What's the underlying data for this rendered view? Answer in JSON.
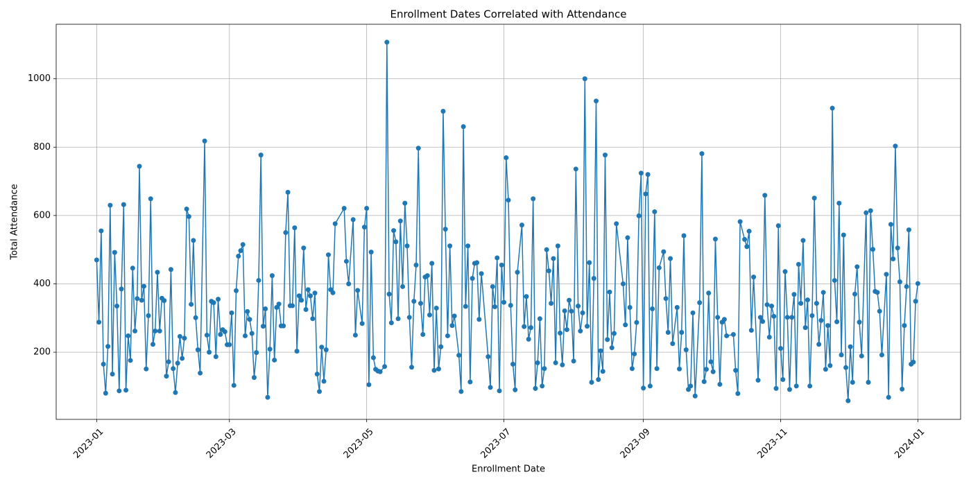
{
  "chart_data": {
    "type": "line",
    "title": "Enrollment Dates Correlated with Attendance",
    "x_label": "Enrollment Date",
    "y_label": "Total Attendance",
    "color": "#1f77b4",
    "grid": true,
    "marker": "circle",
    "xlim": [
      "2022-12-14",
      "2024-01-20"
    ],
    "ylim": [
      3.5,
      1159.5
    ],
    "xticks": [
      "2023-01",
      "2023-03",
      "2023-05",
      "2023-07",
      "2023-09",
      "2023-11",
      "2024-01"
    ],
    "yticks": [
      200,
      400,
      600,
      800,
      1000
    ],
    "x": [
      "2023-01-01",
      "2023-01-02",
      "2023-01-03",
      "2023-01-04",
      "2023-01-05",
      "2023-01-06",
      "2023-01-07",
      "2023-01-08",
      "2023-01-09",
      "2023-01-10",
      "2023-01-11",
      "2023-01-12",
      "2023-01-13",
      "2023-01-14",
      "2023-01-15",
      "2023-01-16",
      "2023-01-17",
      "2023-01-18",
      "2023-01-19",
      "2023-01-20",
      "2023-01-21",
      "2023-01-22",
      "2023-01-23",
      "2023-01-24",
      "2023-01-25",
      "2023-01-26",
      "2023-01-27",
      "2023-01-28",
      "2023-01-29",
      "2023-01-30",
      "2023-01-31",
      "2023-02-01",
      "2023-02-02",
      "2023-02-03",
      "2023-02-04",
      "2023-02-05",
      "2023-02-06",
      "2023-02-07",
      "2023-02-08",
      "2023-02-09",
      "2023-02-10",
      "2023-02-11",
      "2023-02-12",
      "2023-02-13",
      "2023-02-14",
      "2023-02-15",
      "2023-02-16",
      "2023-02-18",
      "2023-02-19",
      "2023-02-20",
      "2023-02-21",
      "2023-02-22",
      "2023-02-23",
      "2023-02-24",
      "2023-02-25",
      "2023-02-26",
      "2023-02-27",
      "2023-02-28",
      "2023-03-01",
      "2023-03-02",
      "2023-03-03",
      "2023-03-04",
      "2023-03-05",
      "2023-03-06",
      "2023-03-07",
      "2023-03-08",
      "2023-03-09",
      "2023-03-10",
      "2023-03-11",
      "2023-03-12",
      "2023-03-13",
      "2023-03-14",
      "2023-03-15",
      "2023-03-16",
      "2023-03-17",
      "2023-03-18",
      "2023-03-19",
      "2023-03-20",
      "2023-03-21",
      "2023-03-22",
      "2023-03-23",
      "2023-03-24",
      "2023-03-25",
      "2023-03-26",
      "2023-03-27",
      "2023-03-28",
      "2023-03-29",
      "2023-03-30",
      "2023-03-31",
      "2023-04-01",
      "2023-04-02",
      "2023-04-03",
      "2023-04-04",
      "2023-04-05",
      "2023-04-06",
      "2023-04-07",
      "2023-04-08",
      "2023-04-09",
      "2023-04-10",
      "2023-04-11",
      "2023-04-12",
      "2023-04-13",
      "2023-04-14",
      "2023-04-15",
      "2023-04-16",
      "2023-04-17",
      "2023-04-21",
      "2023-04-22",
      "2023-04-23",
      "2023-04-25",
      "2023-04-26",
      "2023-04-27",
      "2023-04-29",
      "2023-04-30",
      "2023-05-01",
      "2023-05-02",
      "2023-05-03",
      "2023-05-04",
      "2023-05-05",
      "2023-05-06",
      "2023-05-07",
      "2023-05-09",
      "2023-05-10",
      "2023-05-11",
      "2023-05-12",
      "2023-05-13",
      "2023-05-14",
      "2023-05-15",
      "2023-05-16",
      "2023-05-17",
      "2023-05-18",
      "2023-05-19",
      "2023-05-20",
      "2023-05-21",
      "2023-05-22",
      "2023-05-23",
      "2023-05-24",
      "2023-05-25",
      "2023-05-26",
      "2023-05-27",
      "2023-05-28",
      "2023-05-29",
      "2023-05-30",
      "2023-05-31",
      "2023-06-01",
      "2023-06-02",
      "2023-06-03",
      "2023-06-04",
      "2023-06-05",
      "2023-06-06",
      "2023-06-07",
      "2023-06-08",
      "2023-06-09",
      "2023-06-11",
      "2023-06-12",
      "2023-06-13",
      "2023-06-14",
      "2023-06-15",
      "2023-06-16",
      "2023-06-17",
      "2023-06-18",
      "2023-06-19",
      "2023-06-20",
      "2023-06-21",
      "2023-06-24",
      "2023-06-25",
      "2023-06-26",
      "2023-06-27",
      "2023-06-28",
      "2023-06-29",
      "2023-06-30",
      "2023-07-01",
      "2023-07-02",
      "2023-07-03",
      "2023-07-04",
      "2023-07-05",
      "2023-07-06",
      "2023-07-07",
      "2023-07-09",
      "2023-07-10",
      "2023-07-11",
      "2023-07-12",
      "2023-07-13",
      "2023-07-14",
      "2023-07-15",
      "2023-07-16",
      "2023-07-17",
      "2023-07-18",
      "2023-07-19",
      "2023-07-20",
      "2023-07-21",
      "2023-07-22",
      "2023-07-23",
      "2023-07-24",
      "2023-07-25",
      "2023-07-26",
      "2023-07-27",
      "2023-07-28",
      "2023-07-29",
      "2023-07-30",
      "2023-07-31",
      "2023-08-01",
      "2023-08-02",
      "2023-08-03",
      "2023-08-04",
      "2023-08-05",
      "2023-08-06",
      "2023-08-07",
      "2023-08-08",
      "2023-08-09",
      "2023-08-10",
      "2023-08-11",
      "2023-08-12",
      "2023-08-13",
      "2023-08-14",
      "2023-08-15",
      "2023-08-16",
      "2023-08-17",
      "2023-08-18",
      "2023-08-19",
      "2023-08-20",
      "2023-08-23",
      "2023-08-24",
      "2023-08-25",
      "2023-08-26",
      "2023-08-27",
      "2023-08-28",
      "2023-08-29",
      "2023-08-30",
      "2023-08-31",
      "2023-09-01",
      "2023-09-02",
      "2023-09-03",
      "2023-09-04",
      "2023-09-05",
      "2023-09-06",
      "2023-09-07",
      "2023-09-08",
      "2023-09-10",
      "2023-09-11",
      "2023-09-12",
      "2023-09-13",
      "2023-09-14",
      "2023-09-16",
      "2023-09-17",
      "2023-09-18",
      "2023-09-19",
      "2023-09-20",
      "2023-09-21",
      "2023-09-22",
      "2023-09-23",
      "2023-09-24",
      "2023-09-26",
      "2023-09-27",
      "2023-09-28",
      "2023-09-29",
      "2023-09-30",
      "2023-10-01",
      "2023-10-02",
      "2023-10-03",
      "2023-10-04",
      "2023-10-05",
      "2023-10-06",
      "2023-10-07",
      "2023-10-08",
      "2023-10-11",
      "2023-10-12",
      "2023-10-13",
      "2023-10-14",
      "2023-10-16",
      "2023-10-17",
      "2023-10-18",
      "2023-10-19",
      "2023-10-20",
      "2023-10-22",
      "2023-10-23",
      "2023-10-24",
      "2023-10-25",
      "2023-10-26",
      "2023-10-27",
      "2023-10-28",
      "2023-10-29",
      "2023-10-30",
      "2023-10-31",
      "2023-11-01",
      "2023-11-02",
      "2023-11-03",
      "2023-11-04",
      "2023-11-05",
      "2023-11-06",
      "2023-11-07",
      "2023-11-08",
      "2023-11-09",
      "2023-11-10",
      "2023-11-11",
      "2023-11-12",
      "2023-11-13",
      "2023-11-14",
      "2023-11-15",
      "2023-11-16",
      "2023-11-17",
      "2023-11-18",
      "2023-11-19",
      "2023-11-20",
      "2023-11-21",
      "2023-11-22",
      "2023-11-23",
      "2023-11-24",
      "2023-11-25",
      "2023-11-26",
      "2023-11-27",
      "2023-11-28",
      "2023-11-29",
      "2023-11-30",
      "2023-12-01",
      "2023-12-02",
      "2023-12-03",
      "2023-12-04",
      "2023-12-05",
      "2023-12-06",
      "2023-12-07",
      "2023-12-09",
      "2023-12-10",
      "2023-12-11",
      "2023-12-12",
      "2023-12-13",
      "2023-12-14",
      "2023-12-15",
      "2023-12-16",
      "2023-12-18",
      "2023-12-19",
      "2023-12-20",
      "2023-12-21",
      "2023-12-22",
      "2023-12-23",
      "2023-12-24",
      "2023-12-25",
      "2023-12-26",
      "2023-12-27",
      "2023-12-28",
      "2023-12-29",
      "2023-12-30",
      "2023-12-31",
      "2024-01-01"
    ],
    "values": [
      470,
      288,
      555,
      165,
      80,
      217,
      630,
      136,
      492,
      335,
      87,
      385,
      632,
      89,
      248,
      176,
      446,
      262,
      357,
      744,
      352,
      393,
      151,
      307,
      649,
      223,
      262,
      434,
      262,
      358,
      351,
      130,
      172,
      442,
      152,
      82,
      168,
      246,
      182,
      241,
      619,
      597,
      340,
      527,
      301,
      207,
      139,
      818,
      250,
      200,
      349,
      345,
      187,
      355,
      252,
      266,
      260,
      222,
      222,
      315,
      103,
      380,
      481,
      497,
      515,
      248,
      319,
      296,
      255,
      126,
      199,
      410,
      777,
      276,
      327,
      68,
      209,
      424,
      177,
      331,
      341,
      277,
      277,
      550,
      668,
      336,
      336,
      564,
      203,
      365,
      352,
      505,
      325,
      383,
      365,
      298,
      373,
      136,
      85,
      215,
      115,
      207,
      485,
      383,
      374,
      576,
      621,
      466,
      400,
      588,
      250,
      381,
      284,
      566,
      621,
      105,
      493,
      184,
      150,
      145,
      143,
      158,
      1107,
      370,
      286,
      556,
      523,
      298,
      584,
      392,
      636,
      511,
      302,
      156,
      349,
      455,
      797,
      343,
      252,
      420,
      424,
      309,
      460,
      147,
      329,
      151,
      216,
      905,
      560,
      248,
      511,
      278,
      306,
      191,
      85,
      860,
      334,
      511,
      113,
      416,
      460,
      462,
      296,
      430,
      187,
      97,
      392,
      333,
      476,
      87,
      455,
      346,
      769,
      645,
      337,
      165,
      90,
      434,
      572,
      275,
      363,
      238,
      272,
      649,
      94,
      169,
      298,
      101,
      152,
      500,
      438,
      343,
      474,
      169,
      511,
      256,
      163,
      321,
      266,
      352,
      320,
      174,
      736,
      335,
      262,
      315,
      1000,
      276,
      462,
      112,
      416,
      935,
      120,
      204,
      144,
      777,
      237,
      376,
      213,
      255,
      576,
      400,
      280,
      535,
      331,
      152,
      195,
      287,
      599,
      724,
      95,
      663,
      720,
      101,
      327,
      611,
      152,
      447,
      494,
      357,
      258,
      474,
      225,
      331,
      151,
      258,
      541,
      207,
      91,
      101,
      315,
      72,
      345,
      781,
      114,
      150,
      373,
      172,
      143,
      531,
      302,
      106,
      288,
      296,
      248,
      252,
      147,
      79,
      582,
      530,
      509,
      554,
      264,
      420,
      118,
      302,
      290,
      659,
      339,
      244,
      335,
      305,
      94,
      570,
      211,
      120,
      436,
      302,
      91,
      302,
      369,
      101,
      457,
      343,
      527,
      272,
      353,
      101,
      307,
      651,
      343,
      223,
      293,
      375,
      150,
      278,
      161,
      914,
      410,
      289,
      636,
      192,
      543,
      155,
      58,
      216,
      112,
      370,
      450,
      288,
      189,
      608,
      112,
      614,
      501,
      378,
      375,
      320,
      192,
      428,
      68,
      574,
      473,
      803,
      505,
      406,
      92,
      278,
      392,
      558,
      165,
      171,
      349,
      401
    ]
  }
}
